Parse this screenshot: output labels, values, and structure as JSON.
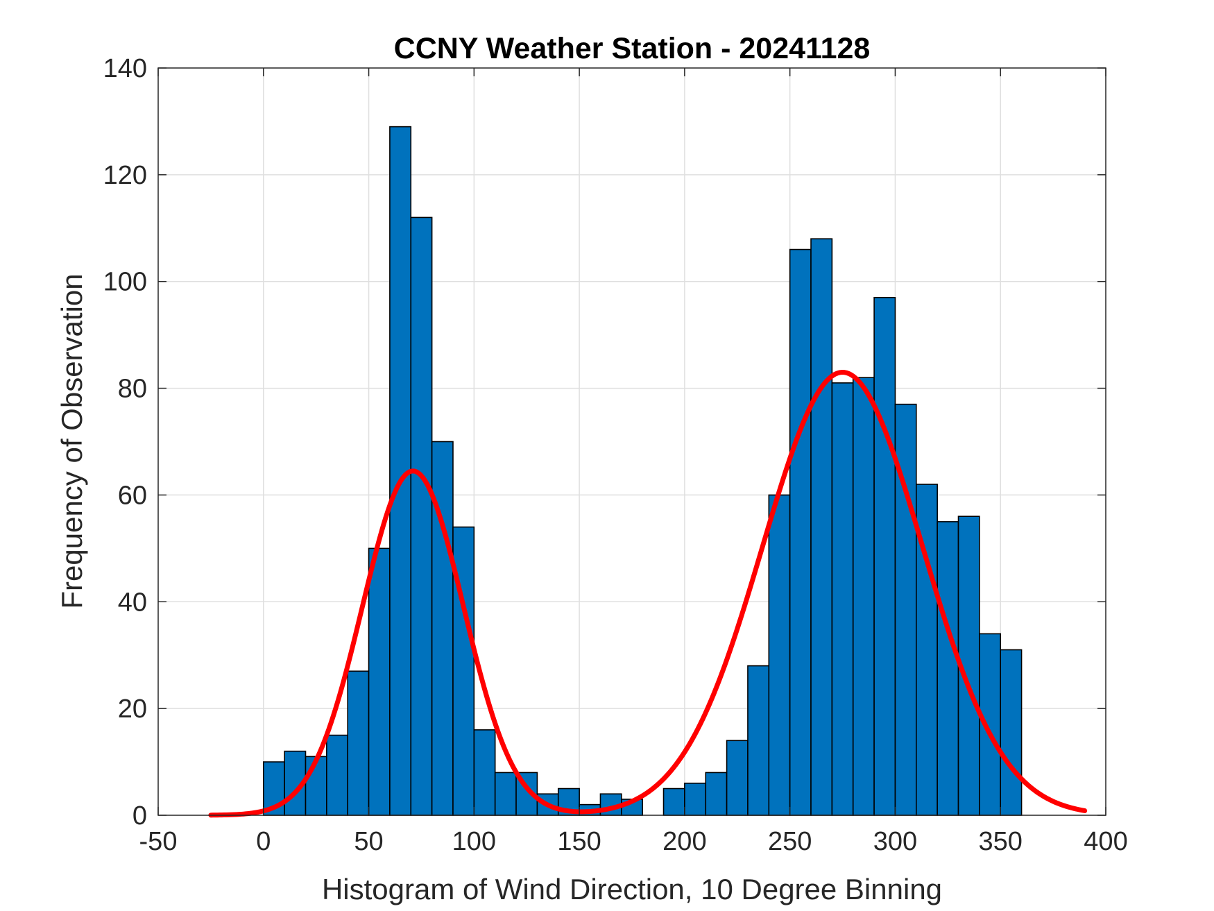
{
  "chart_data": {
    "type": "bar",
    "title": "CCNY Weather Station - 20241128",
    "xlabel": "Histogram of Wind Direction, 10 Degree Binning",
    "ylabel": "Frequency of Observation",
    "xlim": [
      -50,
      400
    ],
    "ylim": [
      0,
      140
    ],
    "xticks": [
      -50,
      0,
      50,
      100,
      150,
      200,
      250,
      300,
      350,
      400
    ],
    "yticks": [
      0,
      20,
      40,
      60,
      80,
      100,
      120,
      140
    ],
    "grid": true,
    "bin_width": 10,
    "bins": [
      {
        "start": 0,
        "count": 10
      },
      {
        "start": 10,
        "count": 12
      },
      {
        "start": 20,
        "count": 11
      },
      {
        "start": 30,
        "count": 15
      },
      {
        "start": 40,
        "count": 27
      },
      {
        "start": 50,
        "count": 50
      },
      {
        "start": 60,
        "count": 129
      },
      {
        "start": 70,
        "count": 112
      },
      {
        "start": 80,
        "count": 70
      },
      {
        "start": 90,
        "count": 54
      },
      {
        "start": 100,
        "count": 16
      },
      {
        "start": 110,
        "count": 8
      },
      {
        "start": 120,
        "count": 8
      },
      {
        "start": 130,
        "count": 4
      },
      {
        "start": 140,
        "count": 5
      },
      {
        "start": 150,
        "count": 2
      },
      {
        "start": 160,
        "count": 4
      },
      {
        "start": 170,
        "count": 3
      },
      {
        "start": 180,
        "count": 0
      },
      {
        "start": 190,
        "count": 5
      },
      {
        "start": 200,
        "count": 6
      },
      {
        "start": 210,
        "count": 8
      },
      {
        "start": 220,
        "count": 14
      },
      {
        "start": 230,
        "count": 28
      },
      {
        "start": 240,
        "count": 60
      },
      {
        "start": 250,
        "count": 106
      },
      {
        "start": 260,
        "count": 108
      },
      {
        "start": 270,
        "count": 81
      },
      {
        "start": 280,
        "count": 82
      },
      {
        "start": 290,
        "count": 97
      },
      {
        "start": 300,
        "count": 77
      },
      {
        "start": 310,
        "count": 62
      },
      {
        "start": 320,
        "count": 55
      },
      {
        "start": 330,
        "count": 56
      },
      {
        "start": 340,
        "count": 34
      },
      {
        "start": 350,
        "count": 31
      }
    ],
    "fit": {
      "type": "two-term gaussian",
      "x_range": [
        -25,
        390
      ],
      "components": [
        {
          "amplitude": 64.5,
          "mean": 71,
          "sigma": 24
        },
        {
          "amplitude": 83.0,
          "mean": 275,
          "sigma": 38
        }
      ],
      "baseline": 0
    },
    "colors": {
      "bar_fill": "#0072BD",
      "fit_line": "#FF0000"
    }
  }
}
